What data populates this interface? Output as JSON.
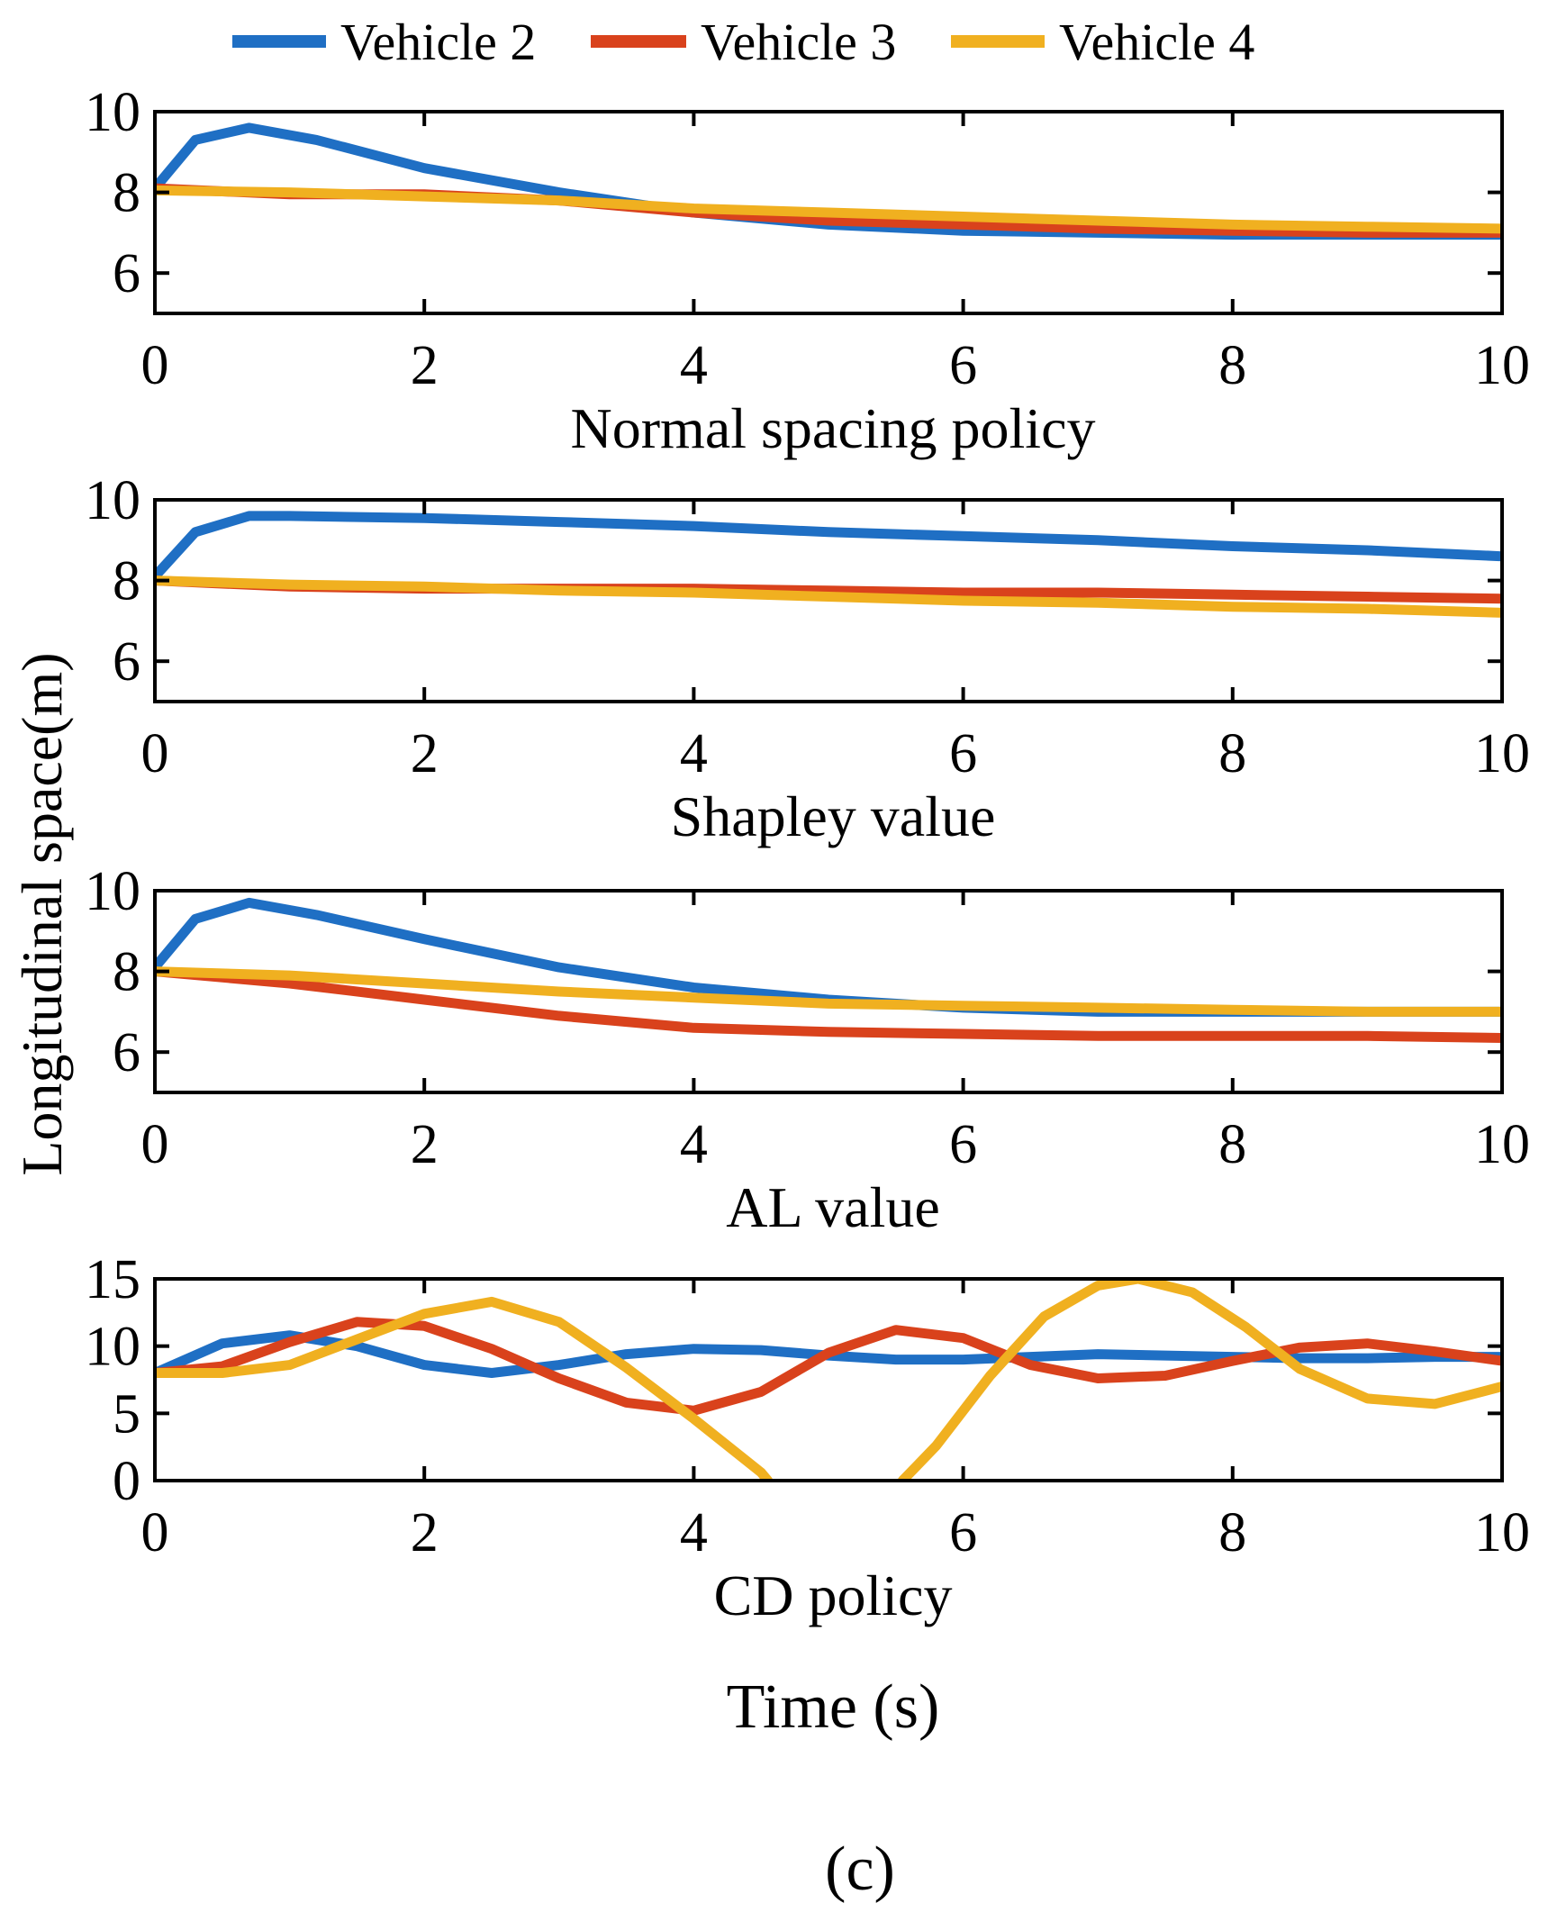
{
  "legend": [
    {
      "label": "Vehicle 2",
      "color": "#1f6fc4"
    },
    {
      "label": "Vehicle 3",
      "color": "#d9421c"
    },
    {
      "label": "Vehicle 4",
      "color": "#f0b020"
    }
  ],
  "ylabel": "Longitudinal space(m)",
  "xlabel": "Time (s)",
  "caption": "(c)",
  "chart_data": [
    {
      "type": "line",
      "title": "Normal spacing policy",
      "xlim": [
        0,
        10
      ],
      "ylim": [
        5,
        10
      ],
      "xticks": [
        "0",
        "2",
        "4",
        "6",
        "8",
        "10"
      ],
      "yticks": [
        "6",
        "8",
        "10"
      ],
      "series": [
        {
          "name": "Vehicle 2",
          "x": [
            0,
            0.3,
            0.7,
            1.2,
            2,
            3,
            4,
            5,
            6,
            7,
            8,
            9,
            10
          ],
          "y": [
            8.1,
            9.3,
            9.6,
            9.3,
            8.6,
            8.0,
            7.5,
            7.2,
            7.05,
            7.0,
            6.95,
            6.95,
            6.95
          ]
        },
        {
          "name": "Vehicle 3",
          "x": [
            0,
            1,
            2,
            3,
            4,
            5,
            6,
            7,
            8,
            9,
            10
          ],
          "y": [
            8.1,
            7.95,
            7.95,
            7.8,
            7.5,
            7.3,
            7.2,
            7.1,
            7.05,
            7.0,
            7.0
          ]
        },
        {
          "name": "Vehicle 4",
          "x": [
            0,
            1,
            2,
            3,
            4,
            5,
            6,
            7,
            8,
            9,
            10
          ],
          "y": [
            8.05,
            8.0,
            7.9,
            7.8,
            7.6,
            7.5,
            7.4,
            7.3,
            7.2,
            7.15,
            7.1
          ]
        }
      ]
    },
    {
      "type": "line",
      "title": "Shapley value",
      "xlim": [
        0,
        10
      ],
      "ylim": [
        5,
        10
      ],
      "xticks": [
        "0",
        "2",
        "4",
        "6",
        "8",
        "10"
      ],
      "yticks": [
        "6",
        "8",
        "10"
      ],
      "series": [
        {
          "name": "Vehicle 2",
          "x": [
            0,
            0.3,
            0.7,
            1,
            2,
            3,
            4,
            5,
            6,
            7,
            8,
            9,
            10
          ],
          "y": [
            8.1,
            9.2,
            9.6,
            9.6,
            9.55,
            9.45,
            9.35,
            9.2,
            9.1,
            9.0,
            8.85,
            8.75,
            8.6
          ]
        },
        {
          "name": "Vehicle 3",
          "x": [
            0,
            1,
            2,
            3,
            4,
            5,
            6,
            7,
            8,
            9,
            10
          ],
          "y": [
            8.0,
            7.85,
            7.8,
            7.8,
            7.8,
            7.75,
            7.7,
            7.7,
            7.65,
            7.6,
            7.55
          ]
        },
        {
          "name": "Vehicle 4",
          "x": [
            0,
            1,
            2,
            3,
            4,
            5,
            6,
            7,
            8,
            9,
            10
          ],
          "y": [
            8.0,
            7.9,
            7.85,
            7.75,
            7.7,
            7.6,
            7.5,
            7.45,
            7.35,
            7.3,
            7.2
          ]
        }
      ]
    },
    {
      "type": "line",
      "title": "AL value",
      "xlim": [
        0,
        10
      ],
      "ylim": [
        5,
        10
      ],
      "xticks": [
        "0",
        "2",
        "4",
        "6",
        "8",
        "10"
      ],
      "yticks": [
        "6",
        "8",
        "10"
      ],
      "series": [
        {
          "name": "Vehicle 2",
          "x": [
            0,
            0.3,
            0.7,
            1.2,
            2,
            3,
            4,
            5,
            6,
            7,
            8,
            9,
            10
          ],
          "y": [
            8.1,
            9.3,
            9.7,
            9.4,
            8.8,
            8.1,
            7.6,
            7.3,
            7.1,
            7.0,
            7.0,
            7.0,
            7.0
          ]
        },
        {
          "name": "Vehicle 3",
          "x": [
            0,
            1,
            2,
            3,
            4,
            5,
            6,
            7,
            8,
            9,
            10
          ],
          "y": [
            8.0,
            7.7,
            7.3,
            6.9,
            6.6,
            6.5,
            6.45,
            6.4,
            6.4,
            6.4,
            6.35
          ]
        },
        {
          "name": "Vehicle 4",
          "x": [
            0,
            1,
            2,
            3,
            4,
            5,
            6,
            7,
            8,
            9,
            10
          ],
          "y": [
            8.0,
            7.9,
            7.7,
            7.5,
            7.35,
            7.2,
            7.15,
            7.1,
            7.05,
            7.0,
            7.0
          ]
        }
      ]
    },
    {
      "type": "line",
      "title": "CD policy",
      "xlim": [
        0,
        10
      ],
      "ylim": [
        0,
        15
      ],
      "xticks": [
        "0",
        "2",
        "4",
        "6",
        "8",
        "10"
      ],
      "yticks": [
        "0",
        "5",
        "10",
        "15"
      ],
      "series": [
        {
          "name": "Vehicle 2",
          "x": [
            0,
            0.5,
            1,
            1.5,
            2,
            2.5,
            3,
            3.5,
            4,
            4.5,
            5,
            5.5,
            6,
            6.5,
            7,
            7.5,
            8,
            8.5,
            9,
            9.5,
            10
          ],
          "y": [
            8,
            10.2,
            10.8,
            10.0,
            8.6,
            8.0,
            8.6,
            9.4,
            9.8,
            9.7,
            9.3,
            9.0,
            9.0,
            9.2,
            9.4,
            9.3,
            9.2,
            9.1,
            9.1,
            9.2,
            9.2
          ]
        },
        {
          "name": "Vehicle 3",
          "x": [
            0,
            0.5,
            1,
            1.5,
            2,
            2.5,
            3,
            3.5,
            4,
            4.5,
            5,
            5.5,
            6,
            6.5,
            7,
            7.5,
            8,
            8.5,
            9,
            9.5,
            10
          ],
          "y": [
            8,
            8.5,
            10.3,
            11.8,
            11.5,
            9.8,
            7.6,
            5.8,
            5.2,
            6.6,
            9.5,
            11.2,
            10.6,
            8.6,
            7.6,
            7.8,
            8.9,
            9.9,
            10.2,
            9.6,
            8.9
          ]
        },
        {
          "name": "Vehicle 4",
          "x": [
            0,
            0.5,
            1,
            1.5,
            2,
            2.5,
            3,
            3.5,
            4,
            4.5,
            4.55
          ],
          "y": [
            8,
            8.0,
            8.6,
            10.5,
            12.4,
            13.3,
            11.8,
            8.4,
            4.6,
            0.6,
            0.0
          ]
        },
        {
          "name": "Vehicle 4",
          "x": [
            5.55,
            5.8,
            6.2,
            6.6,
            7.0,
            7.3,
            7.7,
            8.1,
            8.5,
            9.0,
            9.5,
            10
          ],
          "y": [
            0.0,
            2.6,
            7.8,
            12.2,
            14.5,
            15.0,
            14.0,
            11.4,
            8.3,
            6.1,
            5.7,
            7.0
          ]
        }
      ]
    }
  ]
}
